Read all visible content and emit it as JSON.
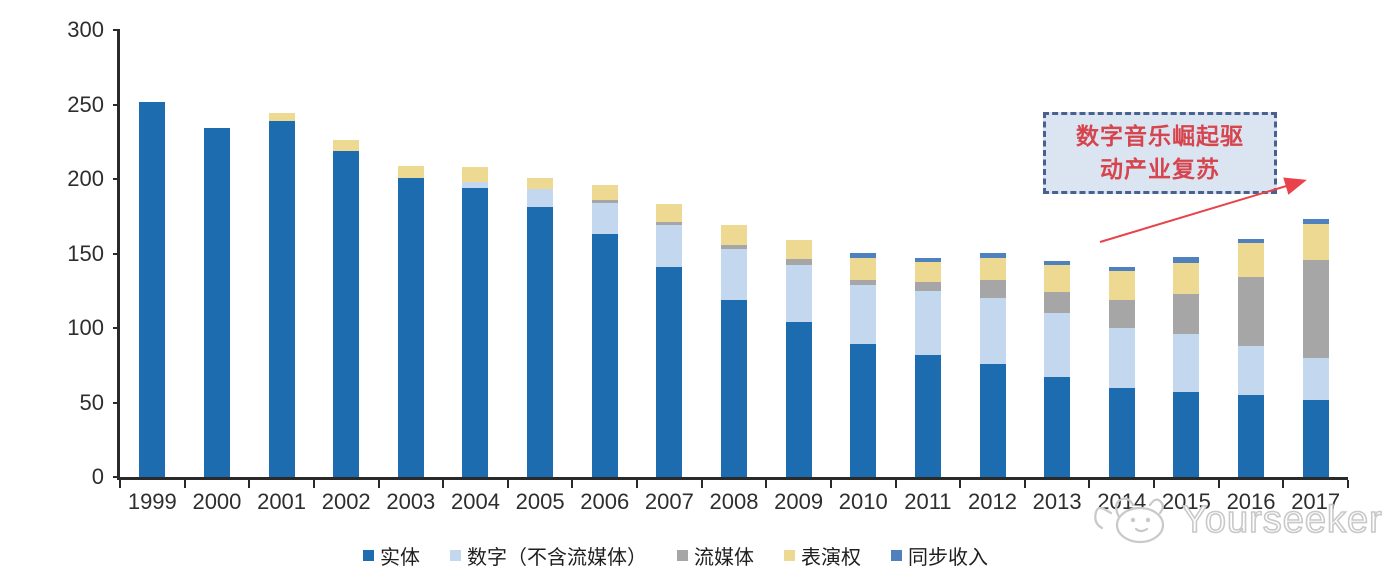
{
  "chart_data": {
    "type": "bar",
    "stacked": true,
    "title": "",
    "categories": [
      "1999",
      "2000",
      "2001",
      "2002",
      "2003",
      "2004",
      "2005",
      "2006",
      "2007",
      "2008",
      "2009",
      "2010",
      "2011",
      "2012",
      "2013",
      "2014",
      "2015",
      "2016",
      "2017"
    ],
    "series": [
      {
        "name": "实体",
        "color": "#1e6cb0",
        "values": [
          252,
          234,
          239,
          219,
          201,
          194,
          181,
          163,
          141,
          119,
          104,
          89,
          82,
          76,
          67,
          60,
          57,
          55,
          52
        ]
      },
      {
        "name": "数字（不含流媒体）",
        "color": "#c3d8ee",
        "values": [
          0,
          0,
          0,
          0,
          0,
          4,
          12,
          21,
          28,
          34,
          38,
          40,
          43,
          44,
          43,
          40,
          39,
          33,
          28
        ]
      },
      {
        "name": "流媒体",
        "color": "#a6a6a6",
        "values": [
          0,
          0,
          0,
          0,
          0,
          0,
          0,
          2,
          2,
          3,
          4,
          3,
          6,
          12,
          14,
          19,
          27,
          46,
          66
        ]
      },
      {
        "name": "表演权",
        "color": "#eed993",
        "values": [
          0,
          0,
          5,
          7,
          8,
          10,
          8,
          10,
          12,
          13,
          13,
          15,
          13,
          15,
          18,
          19,
          21,
          23,
          24
        ]
      },
      {
        "name": "同步收入",
        "color": "#4e81bd",
        "values": [
          0,
          0,
          0,
          0,
          0,
          0,
          0,
          0,
          0,
          0,
          0,
          3,
          3,
          3,
          3,
          3,
          4,
          3,
          3
        ]
      }
    ],
    "ylim": [
      0,
      300
    ],
    "y_ticks": [
      0,
      50,
      100,
      150,
      200,
      250,
      300
    ],
    "xlabel": "",
    "ylabel": "",
    "grid": false,
    "legend_position": "bottom"
  },
  "annotation": {
    "line1": "数字音乐崛起驱",
    "line2": "动产业复苏"
  },
  "watermark": {
    "text": "Yourseeker"
  },
  "colors": {
    "axis": "#2a2a2a",
    "tick_label": "#2e2e2e",
    "annotation_border": "#4a6190",
    "annotation_fill": "#dbe5f2",
    "annotation_text": "#d6454e",
    "arrow": "#e8424a",
    "watermark": "#c9c9c9"
  }
}
